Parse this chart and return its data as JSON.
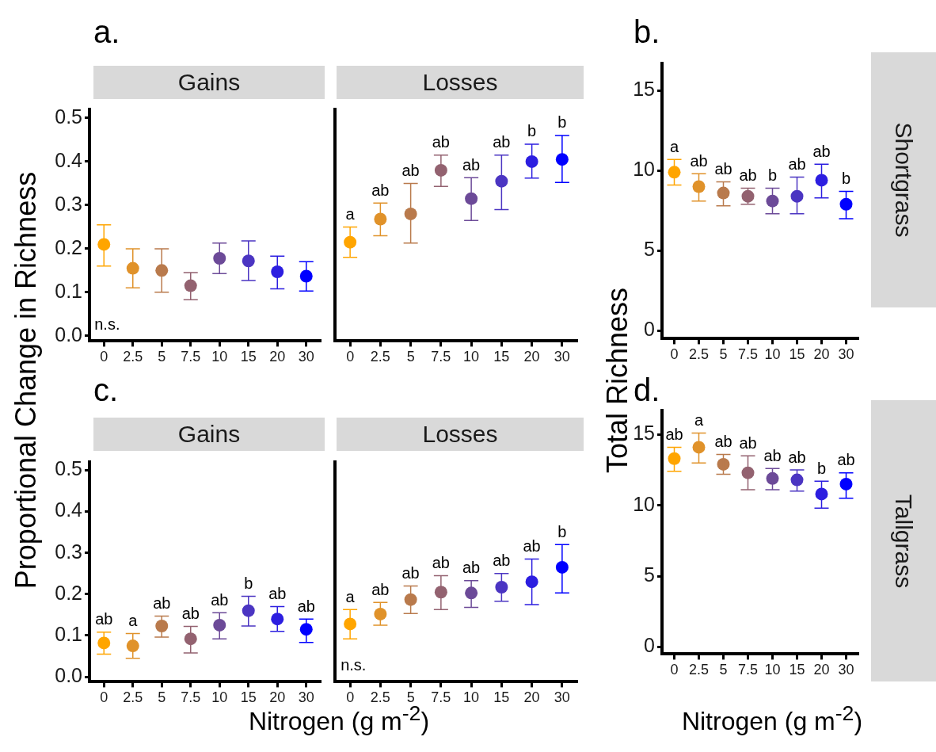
{
  "chart_data": [
    {
      "type": "scatter",
      "title": "a.",
      "subtitle": "Gains",
      "ylabel": "Proportional Change in Richness",
      "categories": [
        "0",
        "2.5",
        "5",
        "7.5",
        "10",
        "15",
        "20",
        "30"
      ],
      "values": [
        0.21,
        0.155,
        0.15,
        0.115,
        0.178,
        0.172,
        0.147,
        0.137
      ],
      "errors": [
        [
          0.16,
          0.255
        ],
        [
          0.11,
          0.2
        ],
        [
          0.1,
          0.2
        ],
        [
          0.083,
          0.145
        ],
        [
          0.143,
          0.213
        ],
        [
          0.127,
          0.218
        ],
        [
          0.108,
          0.183
        ],
        [
          0.103,
          0.17
        ]
      ],
      "colors": [
        "#ffa500",
        "#e0922a",
        "#b97a4c",
        "#936270",
        "#6c4a98",
        "#4b35c2",
        "#2c1ee0",
        "#0000ff"
      ],
      "ylim": [
        -0.012,
        0.52
      ],
      "yticks": [
        {
          "value": 0,
          "label": "0.0"
        },
        {
          "value": 0.1,
          "label": "0.1"
        },
        {
          "value": 0.2,
          "label": "0.2"
        },
        {
          "value": 0.3,
          "label": "0.3"
        },
        {
          "value": 0.4,
          "label": "0.4"
        },
        {
          "value": 0.5,
          "label": "0.5"
        }
      ],
      "marker": "circle",
      "annotations": [
        "n.s."
      ]
    },
    {
      "type": "scatter",
      "subtitle": "Losses",
      "categories": [
        "0",
        "2.5",
        "5",
        "7.5",
        "10",
        "15",
        "20",
        "30"
      ],
      "values": [
        0.215,
        0.268,
        0.28,
        0.38,
        0.315,
        0.355,
        0.4,
        0.405
      ],
      "errors": [
        [
          0.18,
          0.25
        ],
        [
          0.23,
          0.305
        ],
        [
          0.213,
          0.35
        ],
        [
          0.343,
          0.415
        ],
        [
          0.265,
          0.363
        ],
        [
          0.29,
          0.415
        ],
        [
          0.362,
          0.44
        ],
        [
          0.352,
          0.46
        ]
      ],
      "colors": [
        "#ffa500",
        "#e0922a",
        "#b97a4c",
        "#936270",
        "#6c4a98",
        "#4b35c2",
        "#2c1ee0",
        "#0000ff"
      ],
      "value_labels": [
        "a",
        "ab",
        "ab",
        "ab",
        "ab",
        "ab",
        "b",
        "b"
      ],
      "ylim": [
        -0.012,
        0.52
      ],
      "tick_labels": "x",
      "marker": "circle"
    },
    {
      "type": "scatter",
      "title": "b.",
      "ylabel": "Total Richness",
      "y2label": "Shortgrass",
      "categories": [
        "0",
        "2.5",
        "5",
        "7.5",
        "10",
        "15",
        "20",
        "30"
      ],
      "values": [
        9.9,
        9.0,
        8.6,
        8.4,
        8.1,
        8.4,
        9.4,
        7.9
      ],
      "errors": [
        [
          9.1,
          10.7
        ],
        [
          8.1,
          9.8
        ],
        [
          7.8,
          9.3
        ],
        [
          7.9,
          8.9
        ],
        [
          7.3,
          8.9
        ],
        [
          7.3,
          9.6
        ],
        [
          8.3,
          10.4
        ],
        [
          7.0,
          8.7
        ]
      ],
      "colors": [
        "#ffa500",
        "#e0922a",
        "#b97a4c",
        "#936270",
        "#6c4a98",
        "#4b35c2",
        "#2c1ee0",
        "#0000ff"
      ],
      "value_labels": [
        "a",
        "ab",
        "ab",
        "ab",
        "b",
        "ab",
        "ab",
        "b"
      ],
      "ylim": [
        -0.5,
        16.7
      ],
      "yticks": [
        0,
        5,
        10,
        15
      ],
      "marker": "circle"
    },
    {
      "type": "scatter",
      "title": "c.",
      "subtitle": "Gains",
      "xlabel": "Nitrogen (g m$^{-2}$)",
      "categories": [
        "0",
        "2.5",
        "5",
        "7.5",
        "10",
        "15",
        "20",
        "30"
      ],
      "values": [
        0.082,
        0.075,
        0.123,
        0.092,
        0.125,
        0.16,
        0.14,
        0.115
      ],
      "errors": [
        [
          0.055,
          0.108
        ],
        [
          0.045,
          0.105
        ],
        [
          0.096,
          0.147
        ],
        [
          0.058,
          0.122
        ],
        [
          0.092,
          0.155
        ],
        [
          0.123,
          0.195
        ],
        [
          0.11,
          0.17
        ],
        [
          0.083,
          0.14
        ]
      ],
      "colors": [
        "#ffa500",
        "#e0922a",
        "#b97a4c",
        "#936270",
        "#6c4a98",
        "#4b35c2",
        "#2c1ee0",
        "#0000ff"
      ],
      "value_labels": [
        "ab",
        "a",
        "ab",
        "ab",
        "ab",
        "b",
        "ab",
        "ab"
      ],
      "ylim": [
        -0.012,
        0.52
      ],
      "yticks": [
        {
          "value": 0,
          "label": "0.0"
        },
        {
          "value": 0.1,
          "label": "0.1"
        },
        {
          "value": 0.2,
          "label": "0.2"
        },
        {
          "value": 0.3,
          "label": "0.3"
        },
        {
          "value": 0.4,
          "label": "0.4"
        },
        {
          "value": 0.5,
          "label": "0.5"
        }
      ],
      "marker": "circle"
    },
    {
      "type": "scatter",
      "subtitle": "Losses",
      "categories": [
        "0",
        "2.5",
        "5",
        "7.5",
        "10",
        "15",
        "20",
        "30"
      ],
      "values": [
        0.128,
        0.152,
        0.187,
        0.205,
        0.203,
        0.217,
        0.23,
        0.265
      ],
      "errors": [
        [
          0.092,
          0.163
        ],
        [
          0.125,
          0.18
        ],
        [
          0.153,
          0.22
        ],
        [
          0.163,
          0.245
        ],
        [
          0.168,
          0.233
        ],
        [
          0.183,
          0.25
        ],
        [
          0.175,
          0.285
        ],
        [
          0.203,
          0.32
        ]
      ],
      "colors": [
        "#ffa500",
        "#e0922a",
        "#b97a4c",
        "#936270",
        "#6c4a98",
        "#4b35c2",
        "#2c1ee0",
        "#0000ff"
      ],
      "value_labels": [
        "a",
        "ab",
        "ab",
        "ab",
        "ab",
        "ab",
        "ab",
        "b"
      ],
      "ylim": [
        -0.012,
        0.52
      ],
      "tick_labels": "x",
      "marker": "circle",
      "annotations": [
        "n.s."
      ]
    },
    {
      "type": "scatter",
      "title": "d.",
      "xlabel": "Nitrogen (g m$^{-2}$)",
      "y2label": "Tallgrass",
      "categories": [
        "0",
        "2.5",
        "5",
        "7.5",
        "10",
        "15",
        "20",
        "30"
      ],
      "values": [
        13.3,
        14.1,
        12.9,
        12.3,
        11.9,
        11.8,
        10.8,
        11.5
      ],
      "errors": [
        [
          12.4,
          14.1
        ],
        [
          13.0,
          15.1
        ],
        [
          12.2,
          13.6
        ],
        [
          11.1,
          13.5
        ],
        [
          11.1,
          12.6
        ],
        [
          11.0,
          12.5
        ],
        [
          9.8,
          11.7
        ],
        [
          10.5,
          12.3
        ]
      ],
      "colors": [
        "#ffa500",
        "#e0922a",
        "#b97a4c",
        "#936270",
        "#6c4a98",
        "#4b35c2",
        "#2c1ee0",
        "#0000ff"
      ],
      "value_labels": [
        "ab",
        "a",
        "ab",
        "ab",
        "ab",
        "ab",
        "b",
        "ab"
      ],
      "ylim": [
        -0.5,
        16.7
      ],
      "yticks": [
        0,
        5,
        10,
        15
      ],
      "marker": "circle"
    }
  ]
}
